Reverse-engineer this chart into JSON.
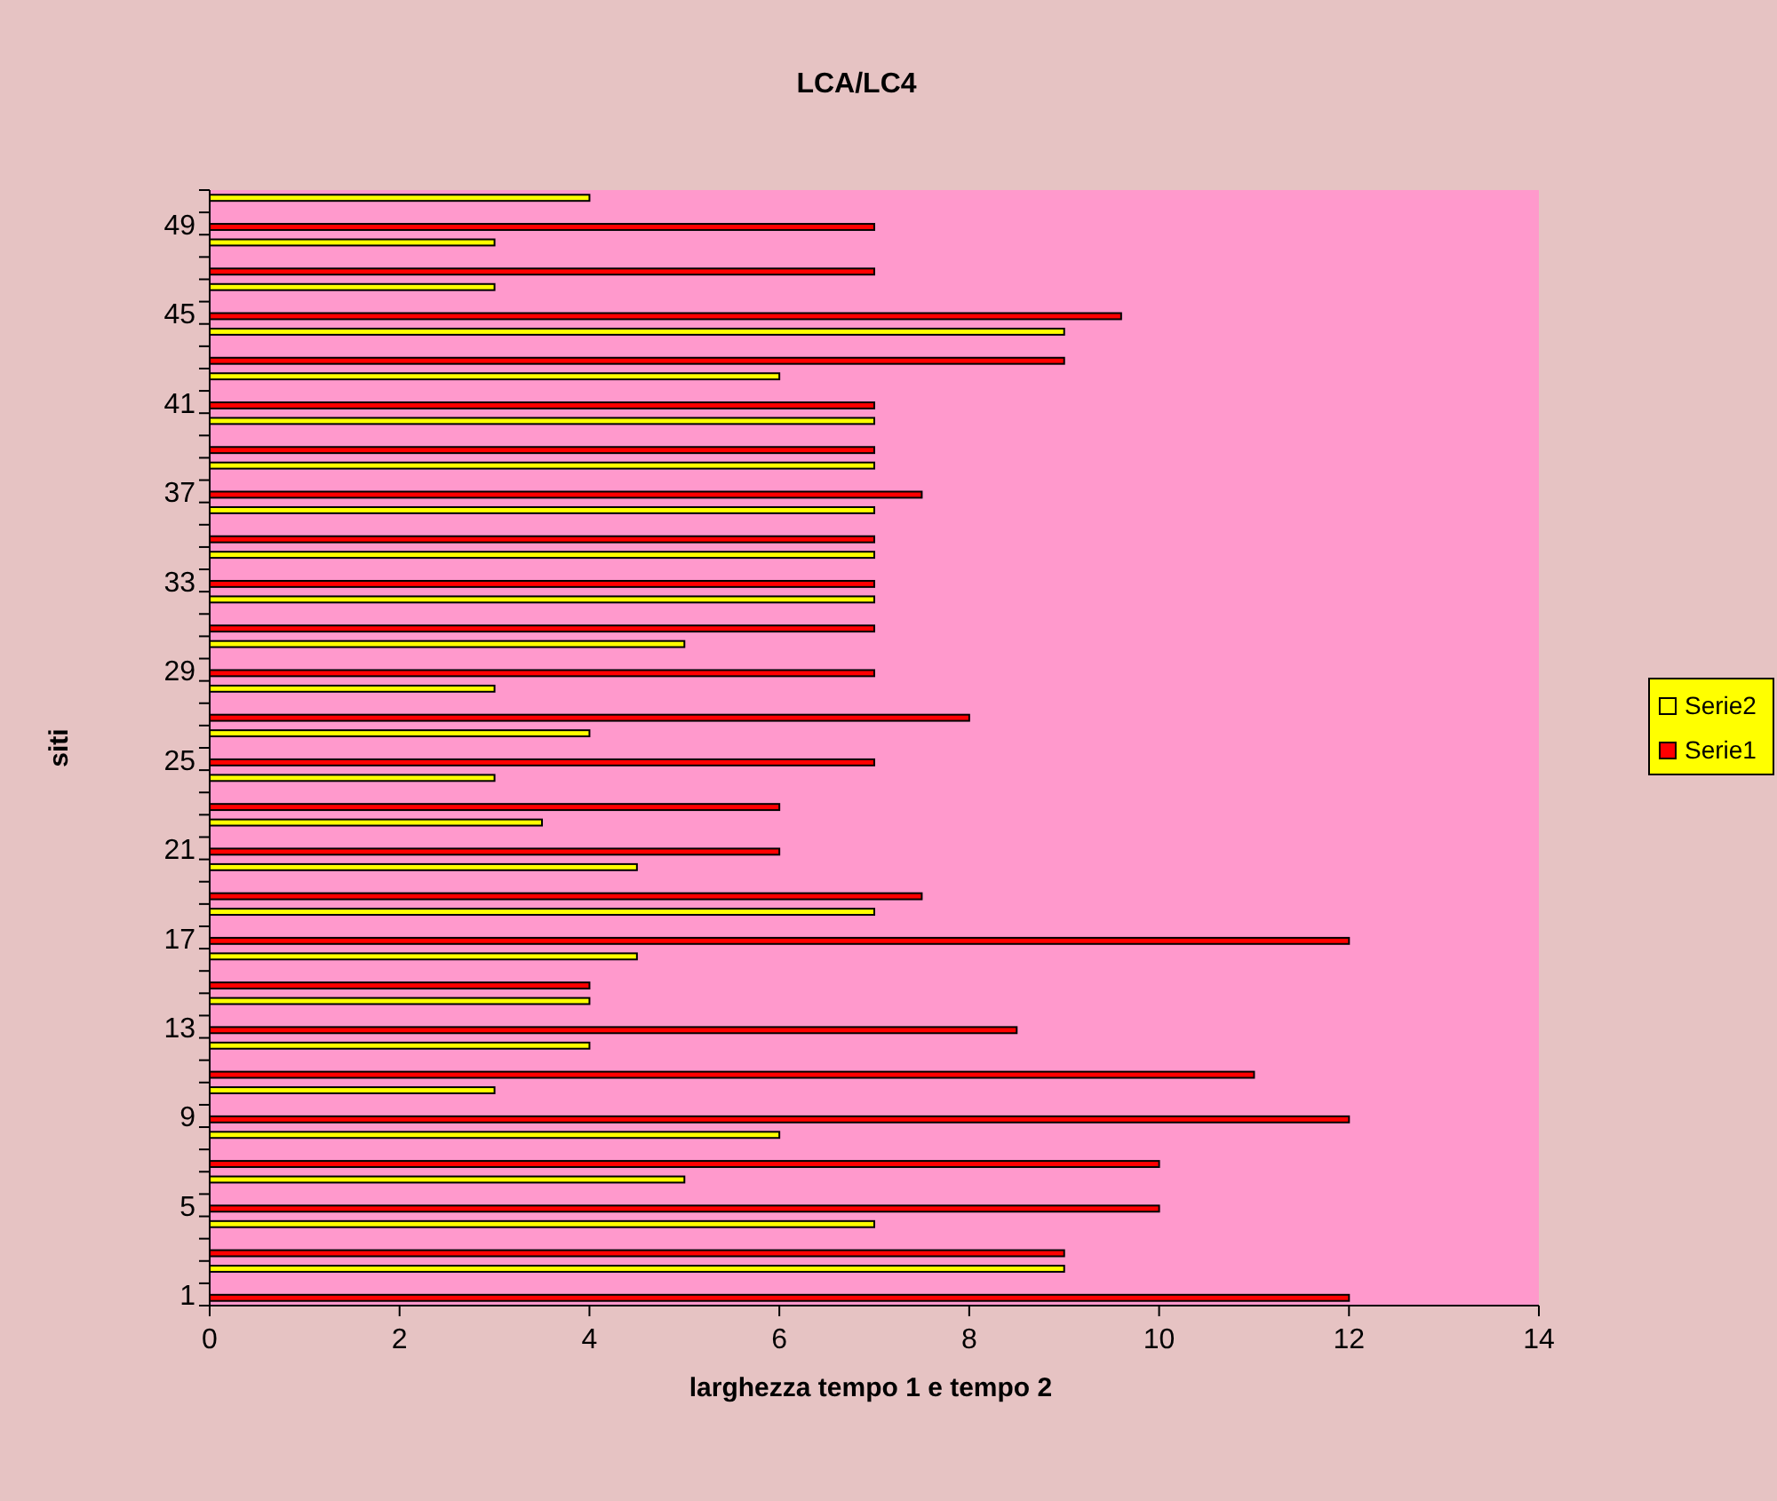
{
  "chart_data": {
    "type": "bar",
    "orientation": "horizontal",
    "title": "LCA/LC4",
    "xlabel": "larghezza tempo 1 e tempo 2",
    "ylabel": "siti",
    "categories": [
      null,
      "49",
      null,
      null,
      null,
      "45",
      null,
      null,
      null,
      "41",
      null,
      null,
      null,
      "37",
      null,
      null,
      null,
      "33",
      null,
      null,
      null,
      "29",
      null,
      null,
      null,
      "25",
      null,
      null,
      null,
      "21",
      null,
      null,
      null,
      "17",
      null,
      null,
      null,
      "13",
      null,
      null,
      null,
      "9",
      null,
      null,
      null,
      "5",
      null,
      null,
      null,
      "1"
    ],
    "series": [
      {
        "name": "Serie1",
        "color": "#ff0000",
        "values": [
          null,
          7,
          null,
          7,
          null,
          9.6,
          null,
          9,
          null,
          7,
          null,
          7,
          null,
          7.5,
          null,
          7,
          null,
          7,
          null,
          7,
          null,
          7,
          null,
          8,
          null,
          7,
          null,
          6,
          null,
          6,
          null,
          7.5,
          null,
          12,
          null,
          4,
          null,
          8.5,
          null,
          11,
          null,
          12,
          null,
          10,
          null,
          10,
          null,
          9,
          null,
          12
        ]
      },
      {
        "name": "Serie2",
        "color": "#ffff00",
        "values": [
          4,
          null,
          3,
          null,
          3,
          null,
          9,
          null,
          6,
          null,
          7,
          null,
          7,
          null,
          7,
          null,
          7,
          null,
          7,
          null,
          5,
          null,
          3,
          null,
          4,
          null,
          3,
          null,
          3.5,
          null,
          4.5,
          null,
          7,
          null,
          4.5,
          null,
          4,
          null,
          4,
          null,
          3,
          null,
          6,
          null,
          5,
          null,
          7,
          null,
          9,
          null
        ]
      }
    ],
    "xlim": [
      0,
      14
    ],
    "xticks": [
      0,
      2,
      4,
      6,
      8,
      10,
      12,
      14
    ],
    "legend": "right"
  }
}
